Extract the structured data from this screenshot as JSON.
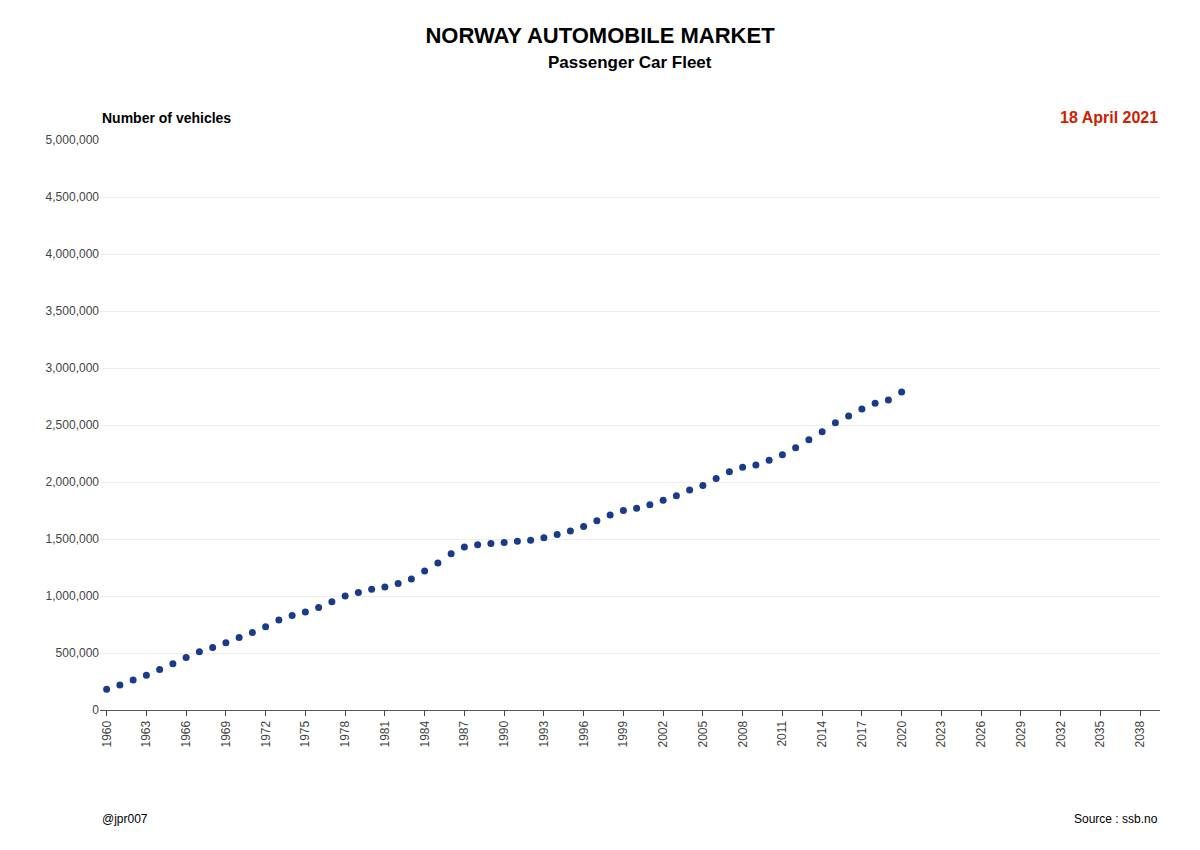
{
  "chart_data": {
    "type": "scatter",
    "title": "NORWAY AUTOMOBILE MARKET",
    "subtitle": "Passenger Car Fleet",
    "ylabel": "Number of vehicles",
    "annotations": [
      "18 April 2021",
      "@jpr007",
      "Source : ssb.no"
    ],
    "color": "#1a3a8a",
    "grid": "y",
    "x": [
      1960,
      1961,
      1962,
      1963,
      1964,
      1965,
      1966,
      1967,
      1968,
      1969,
      1970,
      1971,
      1972,
      1973,
      1974,
      1975,
      1976,
      1977,
      1978,
      1979,
      1980,
      1981,
      1982,
      1983,
      1984,
      1985,
      1986,
      1987,
      1988,
      1989,
      1990,
      1991,
      1992,
      1993,
      1994,
      1995,
      1996,
      1997,
      1998,
      1999,
      2000,
      2001,
      2002,
      2003,
      2004,
      2005,
      2006,
      2007,
      2008,
      2009,
      2010,
      2011,
      2012,
      2013,
      2014,
      2015,
      2016,
      2017,
      2018,
      2019,
      2020
    ],
    "values": [
      182000,
      220000,
      263000,
      305000,
      355000,
      405000,
      460000,
      510000,
      548000,
      590000,
      635000,
      680000,
      730000,
      790000,
      830000,
      860000,
      900000,
      950000,
      1000000,
      1030000,
      1060000,
      1080000,
      1110000,
      1150000,
      1220000,
      1290000,
      1370000,
      1430000,
      1450000,
      1460000,
      1470000,
      1480000,
      1490000,
      1510000,
      1540000,
      1570000,
      1610000,
      1660000,
      1710000,
      1750000,
      1770000,
      1800000,
      1840000,
      1880000,
      1930000,
      1970000,
      2030000,
      2090000,
      2130000,
      2150000,
      2190000,
      2240000,
      2300000,
      2370000,
      2440000,
      2520000,
      2580000,
      2640000,
      2690000,
      2720000,
      2790000
    ],
    "xlim": [
      1959.5,
      2039.5
    ],
    "xticks": [
      1960,
      1963,
      1966,
      1969,
      1972,
      1975,
      1978,
      1981,
      1984,
      1987,
      1990,
      1993,
      1996,
      1999,
      2002,
      2005,
      2008,
      2011,
      2014,
      2017,
      2020,
      2023,
      2026,
      2029,
      2032,
      2035,
      2038
    ],
    "ylim": [
      0,
      5000000
    ],
    "yticks": [
      0,
      {
        "value": 500000,
        "label": "500,000"
      },
      {
        "value": 1000000,
        "label": "1,000,000"
      },
      {
        "value": 1500000,
        "label": "1,500,000"
      },
      {
        "value": 2000000,
        "label": "2,000,000"
      },
      {
        "value": 2500000,
        "label": "2,500,000"
      },
      {
        "value": 3000000,
        "label": "3,000,000"
      },
      {
        "value": 3500000,
        "label": "3,500,000"
      },
      {
        "value": 4000000,
        "label": "4,000,000"
      },
      {
        "value": 4500000,
        "label": "4,500,000"
      },
      {
        "value": 5000000,
        "label": "5,000,000"
      }
    ]
  }
}
